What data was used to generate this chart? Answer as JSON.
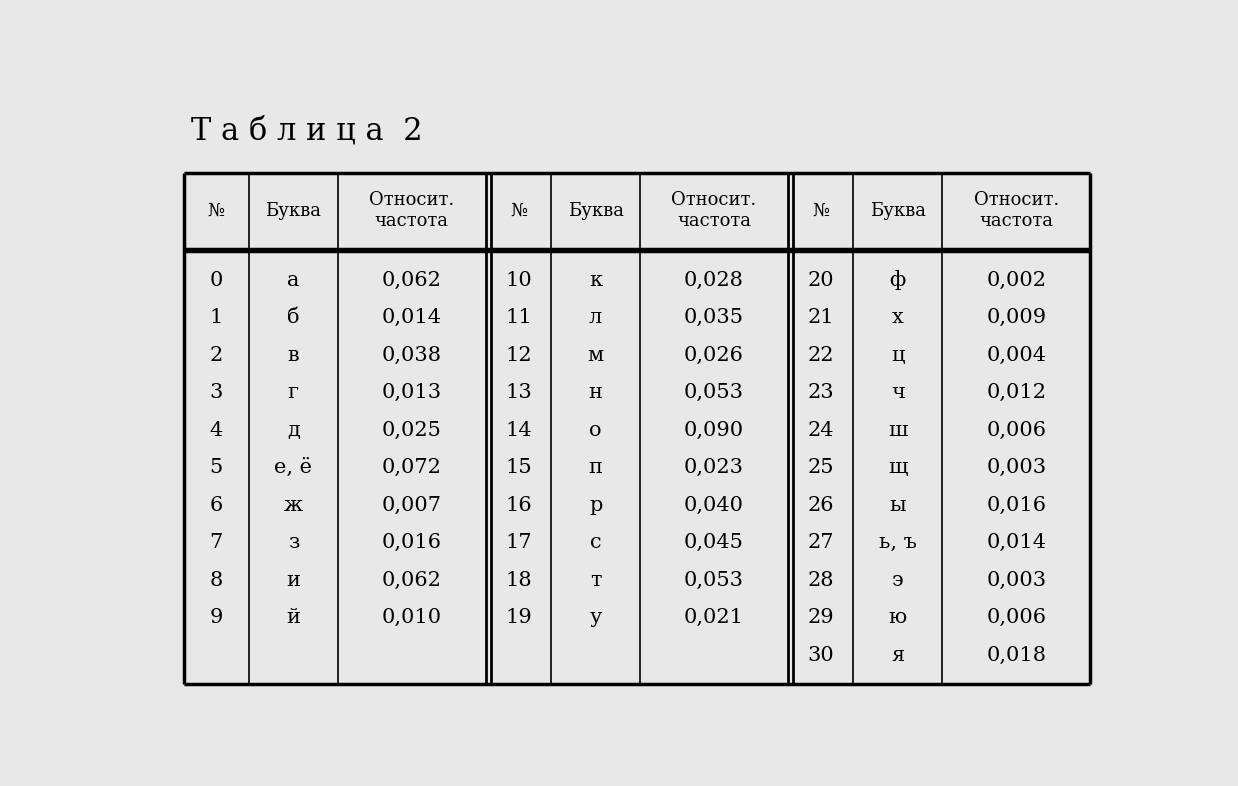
{
  "title": "Т а б л и ц а  2",
  "title_fontsize": 22,
  "headers": [
    "№",
    "Буква",
    "Относит.\nчастота",
    "№",
    "Буква",
    "Относит.\nчастота",
    "№",
    "Буква",
    "Относит.\nчастота"
  ],
  "data_col1": [
    [
      "0",
      "а",
      "0,062"
    ],
    [
      "1",
      "б",
      "0,014"
    ],
    [
      "2",
      "в",
      "0,038"
    ],
    [
      "3",
      "г",
      "0,013"
    ],
    [
      "4",
      "д",
      "0,025"
    ],
    [
      "5",
      "е, ё",
      "0,072"
    ],
    [
      "6",
      "ж",
      "0,007"
    ],
    [
      "7",
      "з",
      "0,016"
    ],
    [
      "8",
      "и",
      "0,062"
    ],
    [
      "9",
      "й",
      "0,010"
    ]
  ],
  "data_col2": [
    [
      "10",
      "к",
      "0,028"
    ],
    [
      "11",
      "л",
      "0,035"
    ],
    [
      "12",
      "м",
      "0,026"
    ],
    [
      "13",
      "н",
      "0,053"
    ],
    [
      "14",
      "о",
      "0,090"
    ],
    [
      "15",
      "п",
      "0,023"
    ],
    [
      "16",
      "р",
      "0,040"
    ],
    [
      "17",
      "с",
      "0,045"
    ],
    [
      "18",
      "т",
      "0,053"
    ],
    [
      "19",
      "у",
      "0,021"
    ]
  ],
  "data_col3": [
    [
      "20",
      "ф",
      "0,002"
    ],
    [
      "21",
      "х",
      "0,009"
    ],
    [
      "22",
      "ц",
      "0,004"
    ],
    [
      "23",
      "ч",
      "0,012"
    ],
    [
      "24",
      "ш",
      "0,006"
    ],
    [
      "25",
      "щ",
      "0,003"
    ],
    [
      "26",
      "ы",
      "0,016"
    ],
    [
      "27",
      "ь, ъ",
      "0,014"
    ],
    [
      "28",
      "э",
      "0,003"
    ],
    [
      "29",
      "ю",
      "0,006"
    ],
    [
      "30",
      "я",
      "0,018"
    ]
  ],
  "bg_color": "#e8e8e8",
  "text_color": "#000000",
  "line_color": "#000000",
  "cell_fontsize": 15,
  "header_fontsize": 13,
  "title_color": "#000000"
}
